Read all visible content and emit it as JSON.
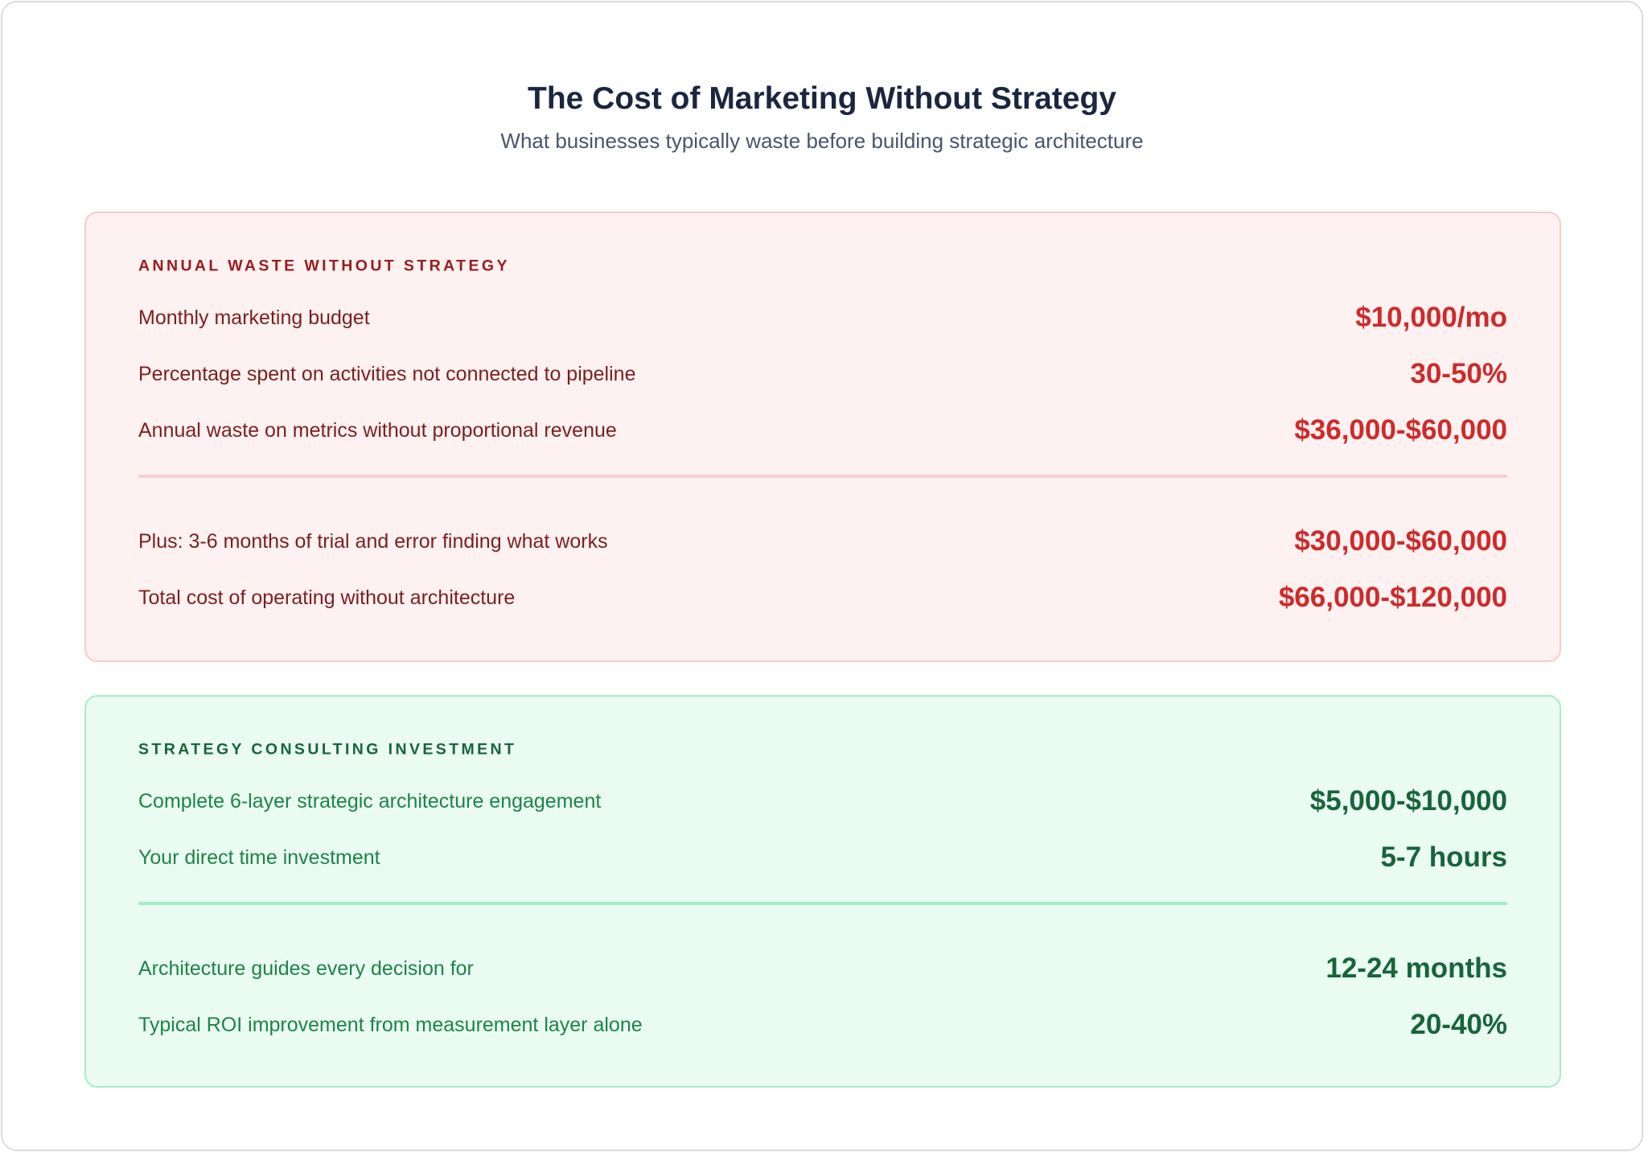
{
  "header": {
    "title": "The Cost of Marketing Without Strategy",
    "subtitle": "What businesses typically waste before building strategic architecture"
  },
  "sections": [
    {
      "label": "ANNUAL WASTE WITHOUT STRATEGY",
      "groups": [
        [
          {
            "text": "Monthly marketing budget",
            "value": "$10,000/mo"
          },
          {
            "text": "Percentage spent on activities not connected to pipeline",
            "value": "30-50%"
          },
          {
            "text": "Annual waste on metrics without proportional revenue",
            "value": "$36,000-$60,000"
          }
        ],
        [
          {
            "text": "Plus: 3-6 months of trial and error finding what works",
            "value": "$30,000-$60,000"
          },
          {
            "text": "Total cost of operating without architecture",
            "value": "$66,000-$120,000"
          }
        ]
      ]
    },
    {
      "label": "STRATEGY CONSULTING INVESTMENT",
      "groups": [
        [
          {
            "text": "Complete 6-layer strategic architecture engagement",
            "value": "$5,000-$10,000"
          },
          {
            "text": "Your direct time investment",
            "value": "5-7 hours"
          }
        ],
        [
          {
            "text": "Architecture guides every decision for",
            "value": "12-24 months"
          },
          {
            "text": "Typical ROI improvement from measurement layer alone",
            "value": "20-40%"
          }
        ]
      ]
    }
  ]
}
